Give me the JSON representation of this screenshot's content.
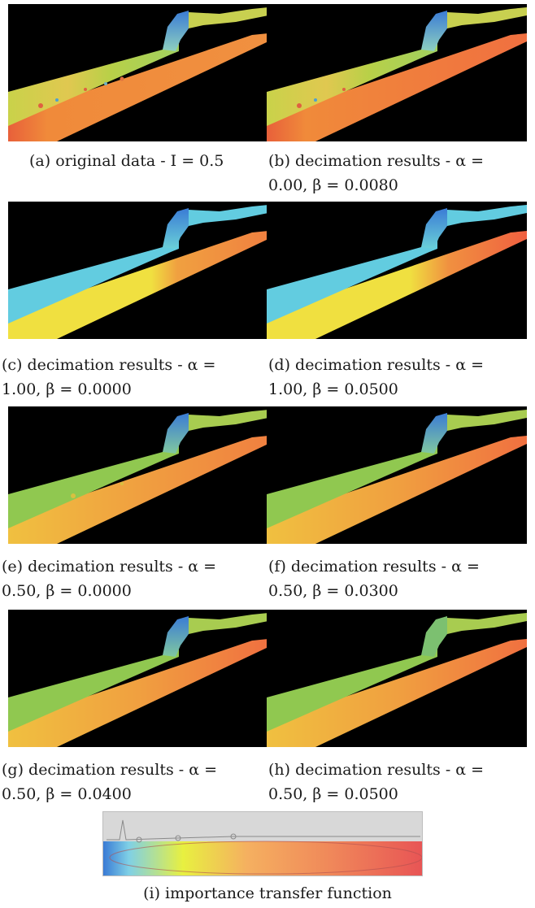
{
  "figure": {
    "panels": [
      {
        "id": "a",
        "caption_line1": "(a) original data - I = 0.5",
        "caption_line2": "",
        "style": "mixed"
      },
      {
        "id": "b",
        "caption_line1": "(b) decimation results - α =",
        "caption_line2": "0.00, β = 0.0080",
        "style": "mixed"
      },
      {
        "id": "c",
        "caption_line1": "(c) decimation results - α =",
        "caption_line2": "1.00, β = 0.0000",
        "style": "cyan"
      },
      {
        "id": "d",
        "caption_line1": "(d) decimation results - α =",
        "caption_line2": "1.00, β = 0.0500",
        "style": "cyan"
      },
      {
        "id": "e",
        "caption_line1": "(e) decimation results - α =",
        "caption_line2": "0.50, β = 0.0000",
        "style": "green"
      },
      {
        "id": "f",
        "caption_line1": "(f) decimation results - α =",
        "caption_line2": "0.50, β = 0.0300",
        "style": "green"
      },
      {
        "id": "g",
        "caption_line1": "(g) decimation results - α =",
        "caption_line2": "0.50, β = 0.0400",
        "style": "green"
      },
      {
        "id": "h",
        "caption_line1": "(h) decimation results - α =",
        "caption_line2": "0.50, β = 0.0500",
        "style": "greenflat"
      }
    ],
    "transfer_function": {
      "caption": "(i) importance transfer function",
      "gradient_colors": [
        "#3a7bd5",
        "#7fd0e6",
        "#e8f040",
        "#f5b060",
        "#f08a5a",
        "#e85555"
      ]
    }
  }
}
